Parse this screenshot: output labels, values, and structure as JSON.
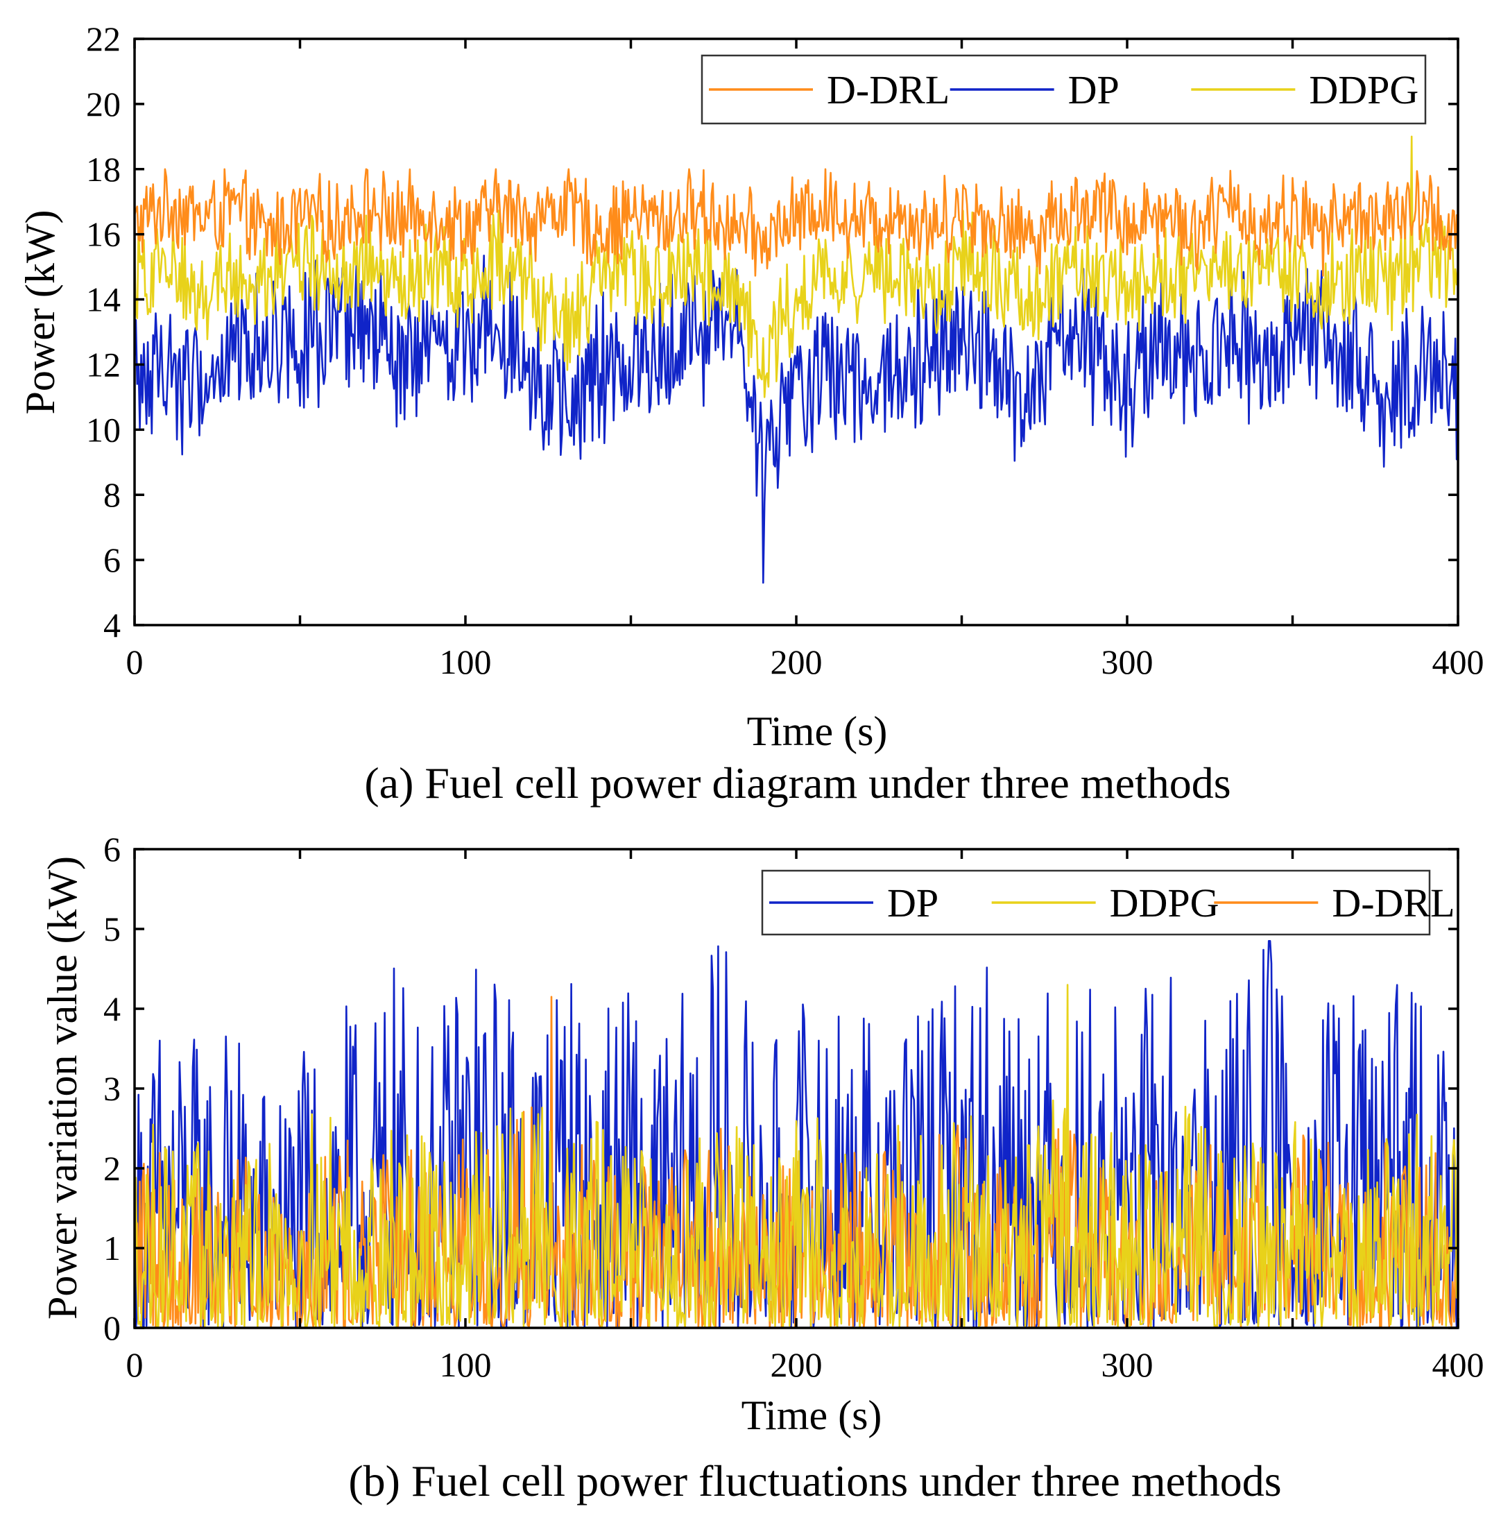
{
  "chart_data": [
    {
      "type": "line",
      "caption": "(a) Fuel cell power diagram under three methods",
      "xlabel": "Time (s)",
      "ylabel": "Power (kW)",
      "xlim": [
        0,
        400
      ],
      "ylim": [
        4,
        22
      ],
      "xticks": [
        0,
        100,
        200,
        300,
        400
      ],
      "yticks": [
        4,
        6,
        8,
        10,
        12,
        14,
        16,
        18,
        20,
        22
      ],
      "grid": false,
      "legend_position": "top-right",
      "series": [
        {
          "name": "D-DRL",
          "color": "#FF8C1A",
          "x": [
            0,
            10,
            20,
            30,
            40,
            50,
            60,
            70,
            80,
            90,
            100,
            110,
            120,
            130,
            140,
            150,
            160,
            170,
            180,
            190,
            200,
            210,
            220,
            230,
            240,
            250,
            260,
            270,
            280,
            290,
            300,
            310,
            320,
            330,
            340,
            350,
            360,
            370,
            380,
            390,
            400
          ],
          "y": [
            16.2,
            17.0,
            16.5,
            16.8,
            16.0,
            16.6,
            16.3,
            16.9,
            16.4,
            16.7,
            16.2,
            16.8,
            16.5,
            16.9,
            16.1,
            16.6,
            16.4,
            16.8,
            16.3,
            15.8,
            16.5,
            16.9,
            16.4,
            16.7,
            16.2,
            16.8,
            16.3,
            16.0,
            16.6,
            16.9,
            16.4,
            16.7,
            16.2,
            16.8,
            16.3,
            16.6,
            16.1,
            16.7,
            16.4,
            16.8,
            16.0
          ],
          "range": [
            14,
            18
          ]
        },
        {
          "name": "DP",
          "color": "#1024C8",
          "x": [
            0,
            10,
            20,
            30,
            40,
            50,
            60,
            70,
            80,
            90,
            100,
            110,
            120,
            130,
            140,
            150,
            160,
            170,
            180,
            190,
            200,
            210,
            220,
            230,
            240,
            250,
            260,
            270,
            280,
            290,
            300,
            310,
            320,
            330,
            340,
            350,
            360,
            370,
            380,
            390,
            400
          ],
          "y": [
            11.5,
            12.0,
            11.2,
            12.5,
            12.8,
            13.0,
            12.6,
            13.2,
            11.8,
            12.4,
            12.8,
            13.5,
            12.2,
            10.2,
            11.6,
            12.0,
            12.5,
            13.0,
            13.5,
            9.0,
            11.2,
            11.8,
            11.5,
            12.0,
            12.6,
            13.2,
            12.0,
            10.6,
            12.8,
            12.5,
            11.0,
            12.4,
            11.6,
            12.8,
            12.0,
            12.4,
            12.8,
            11.8,
            10.8,
            12.4,
            11.0
          ],
          "min_point": {
            "x": 190,
            "y": 5.3
          },
          "range": [
            7,
            16.5
          ]
        },
        {
          "name": "DDPG",
          "color": "#E8D21A",
          "x": [
            0,
            10,
            20,
            30,
            40,
            50,
            60,
            70,
            80,
            90,
            100,
            110,
            120,
            130,
            140,
            150,
            160,
            170,
            180,
            190,
            200,
            210,
            220,
            230,
            240,
            250,
            260,
            270,
            280,
            290,
            300,
            310,
            320,
            330,
            340,
            350,
            360,
            370,
            380,
            390,
            400
          ],
          "y": [
            14.5,
            15.0,
            14.2,
            14.8,
            14.6,
            15.2,
            14.7,
            15.0,
            14.3,
            14.9,
            14.6,
            15.1,
            14.4,
            13.0,
            14.5,
            14.8,
            14.3,
            15.0,
            14.6,
            12.0,
            14.2,
            14.9,
            14.5,
            14.8,
            14.3,
            15.1,
            14.6,
            13.8,
            14.9,
            14.7,
            14.2,
            14.8,
            14.4,
            15.0,
            14.5,
            14.8,
            14.3,
            15.0,
            14.6,
            15.2,
            14.8
          ],
          "max_point": {
            "x": 386,
            "y": 19.0
          },
          "range": [
            11,
            18
          ]
        }
      ]
    },
    {
      "type": "line",
      "caption": "(b) Fuel cell power fluctuations under three methods",
      "xlabel": "Time (s)",
      "ylabel": "Power variation value (kW)",
      "xlim": [
        0,
        400
      ],
      "ylim": [
        0,
        6
      ],
      "xticks": [
        0,
        100,
        200,
        300,
        400
      ],
      "yticks": [
        0,
        1,
        2,
        3,
        4,
        5,
        6
      ],
      "grid": false,
      "legend_position": "top-right",
      "series": [
        {
          "name": "DP",
          "color": "#1024C8",
          "x": [
            0,
            10,
            20,
            30,
            40,
            50,
            60,
            70,
            80,
            90,
            100,
            110,
            120,
            130,
            140,
            150,
            160,
            170,
            180,
            190,
            200,
            210,
            220,
            230,
            240,
            250,
            260,
            270,
            280,
            290,
            300,
            310,
            320,
            330,
            340,
            350,
            360,
            370,
            380,
            390,
            400
          ],
          "y": [
            1.2,
            1.6,
            1.4,
            1.5,
            1.2,
            1.3,
            1.6,
            1.5,
            1.8,
            1.4,
            1.9,
            1.7,
            1.6,
            1.8,
            1.5,
            1.7,
            1.4,
            1.8,
            1.9,
            1.3,
            1.6,
            1.7,
            1.5,
            1.8,
            1.6,
            1.7,
            1.9,
            1.8,
            1.6,
            1.7,
            1.5,
            1.8,
            1.7,
            1.6,
            1.9,
            1.7,
            1.6,
            1.8,
            1.7,
            1.6,
            1.2
          ],
          "max_point": {
            "x": 343,
            "y": 4.85
          },
          "range": [
            0,
            4.85
          ]
        },
        {
          "name": "DDPG",
          "color": "#E8D21A",
          "x": [
            0,
            10,
            20,
            30,
            40,
            50,
            60,
            70,
            80,
            90,
            100,
            110,
            120,
            130,
            140,
            150,
            160,
            170,
            180,
            190,
            200,
            210,
            220,
            230,
            240,
            250,
            260,
            270,
            280,
            290,
            300,
            310,
            320,
            330,
            340,
            350,
            360,
            370,
            380,
            390,
            400
          ],
          "y": [
            1.0,
            1.0,
            0.9,
            0.8,
            0.9,
            1.0,
            1.1,
            0.9,
            1.0,
            0.9,
            1.1,
            1.0,
            1.2,
            0.9,
            1.0,
            0.9,
            0.8,
            1.0,
            1.1,
            0.8,
            1.0,
            1.1,
            0.9,
            1.0,
            1.0,
            1.1,
            0.9,
            1.0,
            1.2,
            1.0,
            0.9,
            1.0,
            1.1,
            0.9,
            1.0,
            1.0,
            1.1,
            0.9,
            1.0,
            1.1,
            0.9
          ],
          "max_point": {
            "x": 282,
            "y": 4.3
          },
          "range": [
            0,
            4.3
          ]
        },
        {
          "name": "D-DRL",
          "color": "#FF8C1A",
          "x": [
            0,
            10,
            20,
            30,
            40,
            50,
            60,
            70,
            80,
            90,
            100,
            110,
            120,
            130,
            140,
            150,
            160,
            170,
            180,
            190,
            200,
            210,
            220,
            230,
            240,
            250,
            260,
            270,
            280,
            290,
            300,
            310,
            320,
            330,
            340,
            350,
            360,
            370,
            380,
            390,
            400
          ],
          "y": [
            1.1,
            0.9,
            0.8,
            0.9,
            0.8,
            0.9,
            1.0,
            0.8,
            0.9,
            0.8,
            1.0,
            0.9,
            1.1,
            0.9,
            0.9,
            0.8,
            0.8,
            0.9,
            1.0,
            0.8,
            0.9,
            1.0,
            0.8,
            0.9,
            0.9,
            1.0,
            0.8,
            0.9,
            1.0,
            0.9,
            0.8,
            0.9,
            1.0,
            0.8,
            0.9,
            0.9,
            1.0,
            0.8,
            1.0,
            0.9,
            0.8
          ],
          "max_point": {
            "x": 126,
            "y": 4.15
          },
          "range": [
            0,
            4.15
          ]
        }
      ]
    }
  ]
}
